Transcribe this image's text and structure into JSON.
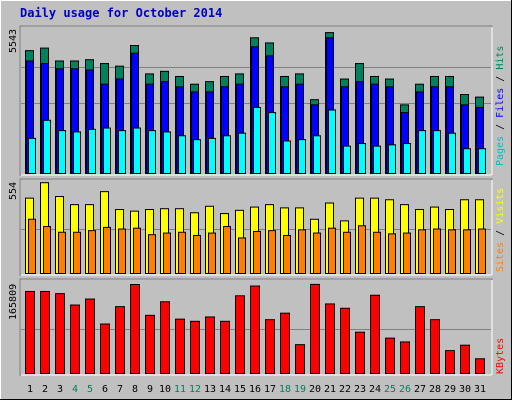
{
  "chart_data": {
    "type": "bar",
    "title": "Daily usage for October 2014",
    "categories": [
      "1",
      "2",
      "3",
      "4",
      "5",
      "6",
      "7",
      "8",
      "9",
      "10",
      "11",
      "12",
      "13",
      "14",
      "15",
      "16",
      "17",
      "18",
      "19",
      "20",
      "21",
      "22",
      "23",
      "24",
      "25",
      "26",
      "27",
      "28",
      "29",
      "30",
      "31"
    ],
    "weekend_days": [
      "4",
      "5",
      "11",
      "12",
      "18",
      "19",
      "25",
      "26"
    ],
    "colors": {
      "background": "#c0c0c0",
      "title": "#0000c0",
      "hits": "#00805c",
      "files": "#0000ff",
      "pages": "#00ffff",
      "visits": "#ffff00",
      "sites": "#ff8000",
      "kbytes": "#ff0000",
      "weekday_tick": "#000000",
      "weekend_tick": "#00805c"
    },
    "panels": [
      {
        "id": "hits-files-pages",
        "ymax_label": "5543",
        "ylim": [
          0,
          5543
        ],
        "grid": true,
        "legend": [
          {
            "text": "Pages",
            "color": "#00c0c0"
          },
          {
            "text": " / ",
            "color": "#000000"
          },
          {
            "text": "Files",
            "color": "#0000ff"
          },
          {
            "text": " / ",
            "color": "#000000"
          },
          {
            "text": "Hits",
            "color": "#00805c"
          }
        ],
        "series": [
          {
            "name": "Hits",
            "values": [
              4800,
              4900,
              4400,
              4400,
              4450,
              4300,
              4200,
              5000,
              3900,
              4000,
              3800,
              3500,
              3600,
              3800,
              3900,
              5300,
              5100,
              3800,
              3900,
              2900,
              5500,
              3700,
              4300,
              3800,
              3700,
              2700,
              3500,
              3800,
              3800,
              3100,
              3000
            ]
          },
          {
            "name": "Files",
            "values": [
              4400,
              4300,
              4100,
              4100,
              4050,
              3500,
              3700,
              4700,
              3500,
              3600,
              3400,
              3200,
              3200,
              3400,
              3500,
              4950,
              4600,
              3400,
              3500,
              2700,
              5300,
              3400,
              3600,
              3500,
              3400,
              2400,
              3200,
              3400,
              3400,
              2700,
              2600
            ]
          },
          {
            "name": "Pages",
            "values": [
              1400,
              2100,
              1700,
              1650,
              1750,
              1800,
              1700,
              1800,
              1700,
              1650,
              1500,
              1350,
              1400,
              1500,
              1600,
              2600,
              2400,
              1300,
              1350,
              1500,
              2500,
              1100,
              1200,
              1100,
              1150,
              1200,
              1700,
              1700,
              1600,
              1000,
              1000
            ]
          }
        ]
      },
      {
        "id": "visits-sites",
        "ymax_label": "554",
        "ylim": [
          0,
          554
        ],
        "grid": true,
        "legend": [
          {
            "text": "Sites",
            "color": "#ff8000"
          },
          {
            "text": " / ",
            "color": "#000000"
          },
          {
            "text": "Visits",
            "color": "#ffff00"
          }
        ],
        "series": [
          {
            "name": "Visits",
            "values": [
              470,
              565,
              480,
              430,
              430,
              510,
              400,
              390,
              400,
              405,
              405,
              380,
              420,
              375,
              395,
              415,
              430,
              410,
              410,
              340,
              440,
              330,
              470,
              470,
              460,
              430,
              400,
              415,
              400,
              460,
              460
            ]
          },
          {
            "name": "Sites",
            "values": [
              340,
              295,
              260,
              260,
              270,
              290,
              280,
              285,
              245,
              255,
              260,
              240,
              255,
              295,
              225,
              265,
              270,
              240,
              275,
              255,
              285,
              260,
              300,
              260,
              250,
              255,
              275,
              280,
              275,
              275,
              280
            ]
          }
        ]
      },
      {
        "id": "kbytes",
        "ymax_label": "165809",
        "ylim": [
          0,
          165809
        ],
        "grid": true,
        "legend": [
          {
            "text": "KBytes",
            "color": "#ff0000"
          }
        ],
        "series": [
          {
            "name": "KBytes",
            "values": [
              153000,
              153000,
              149000,
              128000,
              139000,
              93000,
              125000,
              165809,
              109000,
              134000,
              102000,
              98000,
              106000,
              98000,
              145000,
              163000,
              101000,
              113000,
              55000,
              166000,
              130000,
              122000,
              78000,
              146000,
              67000,
              60000,
              125000,
              101000,
              44000,
              54000,
              29000
            ]
          }
        ]
      }
    ]
  }
}
